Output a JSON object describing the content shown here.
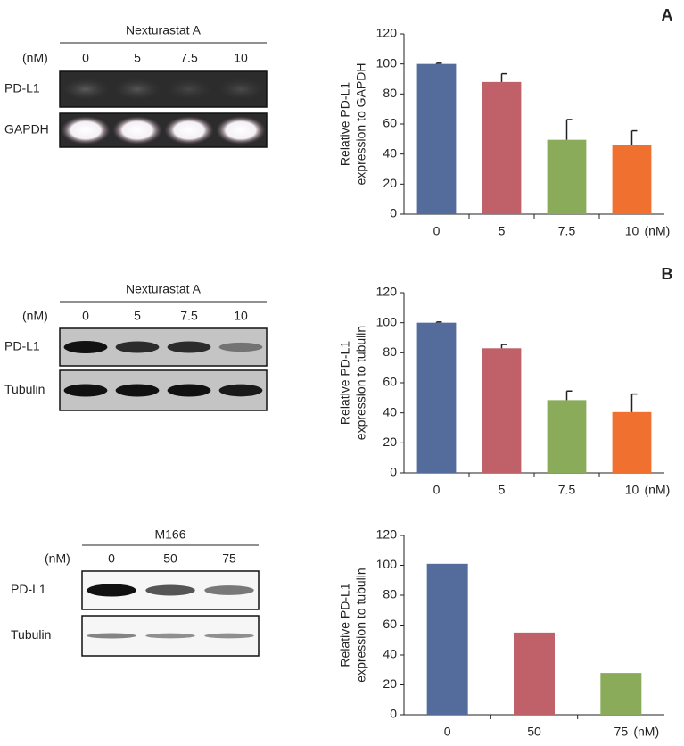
{
  "panel_labels": [
    "A",
    "B"
  ],
  "blots": [
    {
      "title": "Nexturastat A",
      "unit": "(nM)",
      "lanes": [
        "0",
        "5",
        "7.5",
        "10"
      ],
      "rows": [
        "PD-L1",
        "GAPDH"
      ]
    },
    {
      "title": "Nexturastat A",
      "unit": "(nM)",
      "lanes": [
        "0",
        "5",
        "7.5",
        "10"
      ],
      "rows": [
        "PD-L1",
        "Tubulin"
      ]
    },
    {
      "title": "M166",
      "unit": "(nM)",
      "lanes": [
        "0",
        "50",
        "75"
      ],
      "rows": [
        "PD-L1",
        "Tubulin"
      ]
    }
  ],
  "chart_data": [
    {
      "type": "bar",
      "y_label": [
        "Relative PD-L1",
        "expression to GAPDH"
      ],
      "categories": [
        "0",
        "5",
        "7.5",
        "10"
      ],
      "x_unit": "(nM)",
      "values": [
        100,
        88,
        49.5,
        46
      ],
      "errors": [
        0.5,
        5.5,
        13.5,
        9.5
      ],
      "colors": [
        "#536c9c",
        "#c0616a",
        "#8aac5a",
        "#f07030"
      ],
      "ylim": [
        0,
        120
      ],
      "yticks": [
        0,
        20,
        40,
        60,
        80,
        100,
        120
      ]
    },
    {
      "type": "bar",
      "y_label": [
        "Relative PD-L1",
        "expression to tubulin"
      ],
      "categories": [
        "0",
        "5",
        "7.5",
        "10"
      ],
      "x_unit": "(nM)",
      "values": [
        100,
        83,
        48.5,
        40.5
      ],
      "errors": [
        0.5,
        2.5,
        6,
        12
      ],
      "colors": [
        "#536c9c",
        "#c0616a",
        "#8aac5a",
        "#f07030"
      ],
      "ylim": [
        0,
        120
      ],
      "yticks": [
        0,
        20,
        40,
        60,
        80,
        100,
        120
      ]
    },
    {
      "type": "bar",
      "y_label": [
        "Relative PD-L1",
        "expression to tubulin"
      ],
      "categories": [
        "0",
        "50",
        "75"
      ],
      "x_unit": "(nM)",
      "values": [
        101,
        55,
        28
      ],
      "colors": [
        "#536c9c",
        "#c0616a",
        "#8aac5a"
      ],
      "ylim": [
        0,
        120
      ],
      "yticks": [
        0,
        20,
        40,
        60,
        80,
        100,
        120
      ]
    }
  ]
}
